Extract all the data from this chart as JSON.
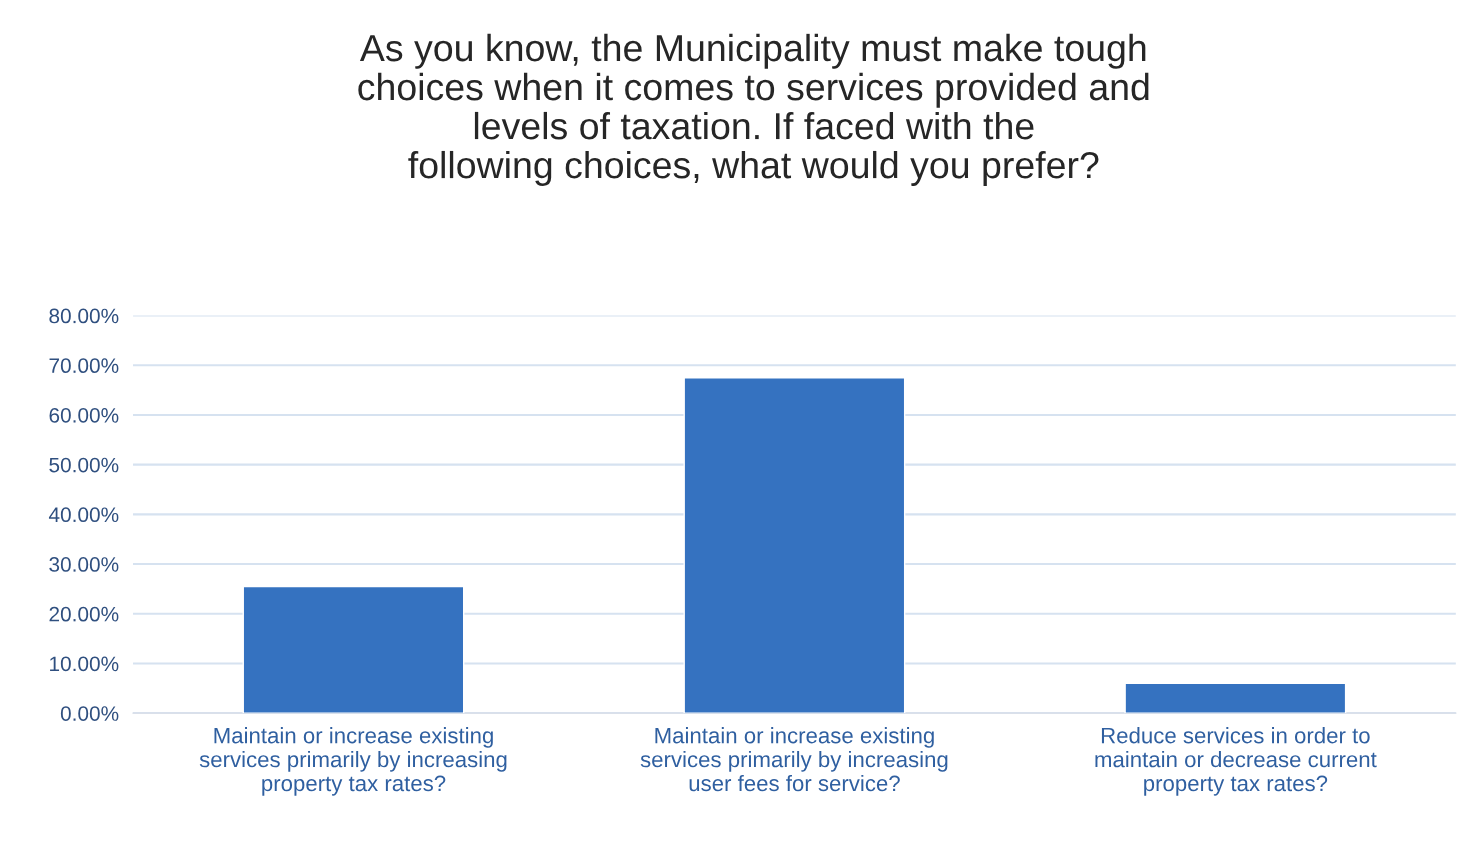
{
  "chart_data": {
    "type": "bar",
    "title": "As you know, the Municipality must make tough choices when it comes to services provided and levels of taxation. If faced with the following choices, what would you prefer?",
    "categories": [
      "Maintain or increase existing services primarily by increasing property tax rates?",
      "Maintain or increase existing services primarily by increasing user fees for service?",
      "Reduce services in order to maintain or decrease current property tax rates?"
    ],
    "values": [
      25.5,
      67.5,
      6.0
    ],
    "color": "#3572c0",
    "ylim": [
      0,
      80
    ],
    "yticks": [
      {
        "value": 0,
        "label": "0.00%"
      },
      {
        "value": 10,
        "label": "10.00%"
      },
      {
        "value": 20,
        "label": "20.00%"
      },
      {
        "value": 30,
        "label": "30.00%"
      },
      {
        "value": 40,
        "label": "40.00%"
      },
      {
        "value": 50,
        "label": "50.00%"
      },
      {
        "value": 60,
        "label": "60.00%"
      },
      {
        "value": 70,
        "label": "70.00%"
      },
      {
        "value": 80,
        "label": "80.00%"
      }
    ],
    "grid": "y",
    "legend": false
  }
}
